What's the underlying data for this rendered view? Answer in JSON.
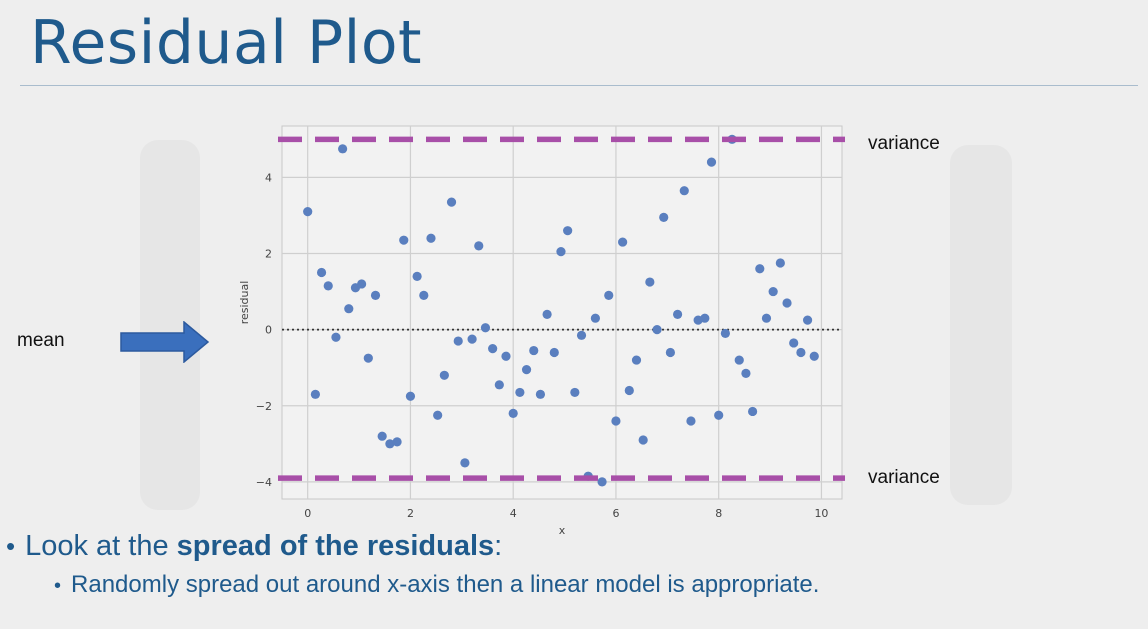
{
  "slide": {
    "title": "Residual Plot",
    "mean_label": "mean",
    "variance_top_label": "variance",
    "variance_bottom_label": "variance",
    "bullet1_prefix": "Look at the ",
    "bullet1_bold": "spread of the residuals",
    "bullet1_suffix": ":",
    "bullet2": "Randomly spread out around x-axis then a linear model is appropriate."
  },
  "colors": {
    "title": "#1f5a8c",
    "points": "#5a7fbf",
    "variance_lines": "#a84fa8",
    "arrow": "#3a6fbd"
  },
  "chart_data": {
    "type": "scatter",
    "xlabel": "x",
    "ylabel": "residual",
    "xlim": [
      -0.5,
      10.4
    ],
    "ylim": [
      -4.45,
      5.35
    ],
    "xticks": [
      0,
      2,
      4,
      6,
      8,
      10
    ],
    "yticks": [
      -4,
      -2,
      0,
      2,
      4
    ],
    "grid": true,
    "mean_line": 0,
    "variance_lines": [
      5.0,
      -3.9
    ],
    "points": [
      [
        0.0,
        3.1
      ],
      [
        0.15,
        -1.7
      ],
      [
        0.27,
        1.5
      ],
      [
        0.4,
        1.15
      ],
      [
        0.55,
        -0.2
      ],
      [
        0.68,
        4.75
      ],
      [
        0.8,
        0.55
      ],
      [
        0.93,
        1.1
      ],
      [
        1.05,
        1.2
      ],
      [
        1.18,
        -0.75
      ],
      [
        1.32,
        0.9
      ],
      [
        1.45,
        -2.8
      ],
      [
        1.6,
        -3.0
      ],
      [
        1.74,
        -2.95
      ],
      [
        1.87,
        2.35
      ],
      [
        2.0,
        -1.75
      ],
      [
        2.13,
        1.4
      ],
      [
        2.26,
        0.9
      ],
      [
        2.4,
        2.4
      ],
      [
        2.53,
        -2.25
      ],
      [
        2.66,
        -1.2
      ],
      [
        2.8,
        3.35
      ],
      [
        2.93,
        -0.3
      ],
      [
        3.06,
        -3.5
      ],
      [
        3.2,
        -0.25
      ],
      [
        3.33,
        2.2
      ],
      [
        3.46,
        0.05
      ],
      [
        3.6,
        -0.5
      ],
      [
        3.73,
        -1.45
      ],
      [
        3.86,
        -0.7
      ],
      [
        4.0,
        -2.2
      ],
      [
        4.13,
        -1.65
      ],
      [
        4.26,
        -1.05
      ],
      [
        4.4,
        -0.55
      ],
      [
        4.53,
        -1.7
      ],
      [
        4.66,
        0.4
      ],
      [
        4.8,
        -0.6
      ],
      [
        4.93,
        2.05
      ],
      [
        5.06,
        2.6
      ],
      [
        5.2,
        -1.65
      ],
      [
        5.33,
        -0.15
      ],
      [
        5.46,
        -3.85
      ],
      [
        5.6,
        0.3
      ],
      [
        5.73,
        -4.0
      ],
      [
        5.86,
        0.9
      ],
      [
        6.0,
        -2.4
      ],
      [
        6.13,
        2.3
      ],
      [
        6.26,
        -1.6
      ],
      [
        6.4,
        -0.8
      ],
      [
        6.53,
        -2.9
      ],
      [
        6.66,
        1.25
      ],
      [
        6.8,
        0.0
      ],
      [
        6.93,
        2.95
      ],
      [
        7.06,
        -0.6
      ],
      [
        7.2,
        0.4
      ],
      [
        7.33,
        3.65
      ],
      [
        7.46,
        -2.4
      ],
      [
        7.6,
        0.25
      ],
      [
        7.73,
        0.3
      ],
      [
        7.86,
        4.4
      ],
      [
        8.0,
        -2.25
      ],
      [
        8.13,
        -0.1
      ],
      [
        8.26,
        5.0
      ],
      [
        8.4,
        -0.8
      ],
      [
        8.53,
        -1.15
      ],
      [
        8.66,
        -2.15
      ],
      [
        8.8,
        1.6
      ],
      [
        8.93,
        0.3
      ],
      [
        9.06,
        1.0
      ],
      [
        9.2,
        1.75
      ],
      [
        9.33,
        0.7
      ],
      [
        9.46,
        -0.35
      ],
      [
        9.6,
        -0.6
      ],
      [
        9.73,
        0.25
      ],
      [
        9.86,
        -0.7
      ]
    ]
  }
}
